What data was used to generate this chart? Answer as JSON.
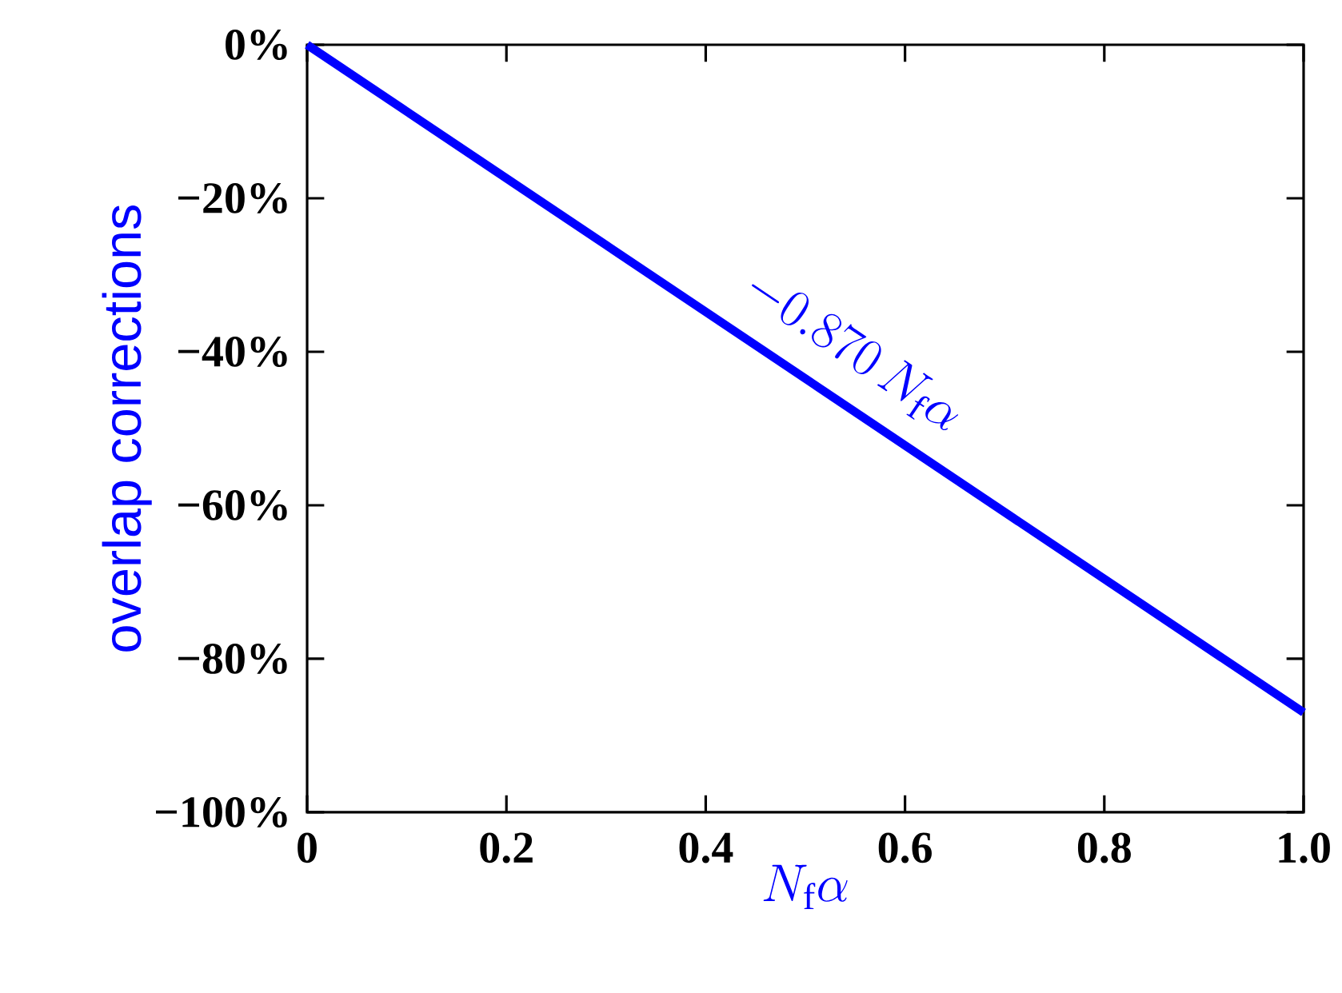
{
  "chart_data": {
    "type": "line",
    "xlabel": "N_\\mathrm{f}\\alpha",
    "ylabel": "overlap corrections",
    "x": [
      0,
      1
    ],
    "series": [
      {
        "color": "#0000ff",
        "values": [
          0,
          -87
        ]
      }
    ],
    "xlim": [
      0,
      1
    ],
    "ylim": [
      -100,
      0
    ],
    "xticks": [
      0,
      0.2,
      0.4,
      0.6,
      0.8,
      {
        "value": 1,
        "label": "1.0"
      }
    ],
    "yticks": [
      {
        "value": -100,
        "label": "−100%"
      },
      {
        "value": -80,
        "label": "−80%"
      },
      {
        "value": -60,
        "label": "−60%"
      },
      {
        "value": -40,
        "label": "−40%"
      },
      {
        "value": -20,
        "label": "−20%"
      },
      {
        "value": 0,
        "label": "0%"
      }
    ],
    "annotations": [
      {
        "text": "-0.870\\,N_\\mathrm{f}\\alpha",
        "x": 0.52,
        "y": -45.24
      }
    ],
    "grid": false,
    "marker": "none",
    "line_style": "solid"
  }
}
